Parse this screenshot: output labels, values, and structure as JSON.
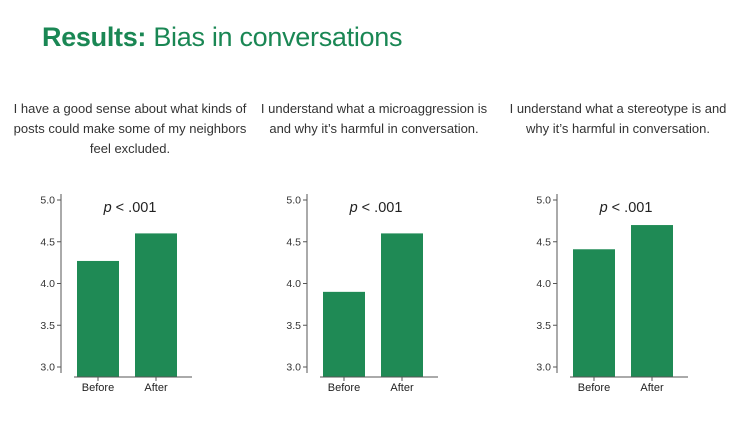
{
  "title": {
    "bold": "Results:",
    "rest": " Bias in conversations"
  },
  "colors": {
    "accent": "#1a8754",
    "bar": "#1f8a55",
    "text": "#333333"
  },
  "chart_data": [
    {
      "type": "bar",
      "title": "I have a good sense about what kinds of posts could make some of my neighbors feel excluded.",
      "annotation": "p < .001",
      "categories": [
        "Before",
        "After"
      ],
      "values": [
        4.27,
        4.6
      ],
      "yticks": [
        "3.0",
        "3.5",
        "4.0",
        "4.5",
        "5.0"
      ],
      "ylim": [
        3.0,
        5.0
      ],
      "grid": false,
      "xlabel": "",
      "ylabel": ""
    },
    {
      "type": "bar",
      "title": "I understand what a microaggression is and why it’s harmful in conversation.",
      "annotation": "p < .001",
      "categories": [
        "Before",
        "After"
      ],
      "values": [
        3.9,
        4.6
      ],
      "yticks": [
        "3.0",
        "3.5",
        "4.0",
        "4.5",
        "5.0"
      ],
      "ylim": [
        3.0,
        5.0
      ],
      "grid": false,
      "xlabel": "",
      "ylabel": ""
    },
    {
      "type": "bar",
      "title": "I understand what a stereotype is and why it’s harmful in conversation.",
      "annotation": "p < .001",
      "categories": [
        "Before",
        "After"
      ],
      "values": [
        4.41,
        4.7
      ],
      "yticks": [
        "3.0",
        "3.5",
        "4.0",
        "4.5",
        "5.0"
      ],
      "ylim": [
        3.0,
        5.0
      ],
      "grid": false,
      "xlabel": "",
      "ylabel": ""
    }
  ]
}
